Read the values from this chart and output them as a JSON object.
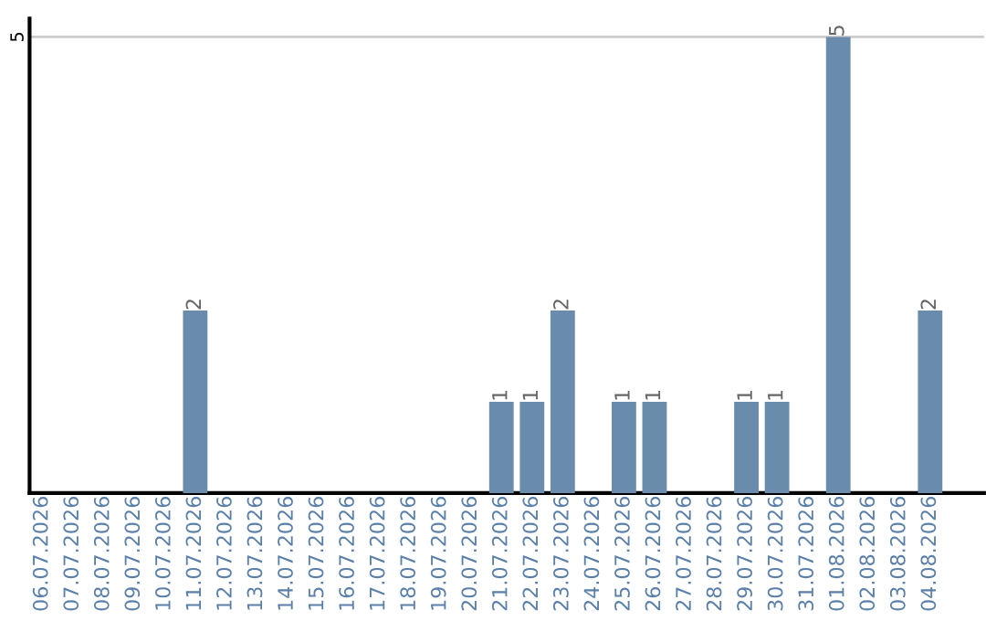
{
  "chart_data": {
    "type": "bar",
    "categories": [
      "06.07.2026",
      "07.07.2026",
      "08.07.2026",
      "09.07.2026",
      "10.07.2026",
      "11.07.2026",
      "12.07.2026",
      "13.07.2026",
      "14.07.2026",
      "15.07.2026",
      "16.07.2026",
      "17.07.2026",
      "18.07.2026",
      "19.07.2026",
      "20.07.2026",
      "21.07.2026",
      "22.07.2026",
      "23.07.2026",
      "24.07.2026",
      "25.07.2026",
      "26.07.2026",
      "27.07.2026",
      "28.07.2026",
      "29.07.2026",
      "30.07.2026",
      "31.07.2026",
      "01.08.2026",
      "02.08.2026",
      "03.08.2026",
      "04.08.2026"
    ],
    "values": [
      0,
      0,
      0,
      0,
      0,
      2,
      0,
      0,
      0,
      0,
      0,
      0,
      0,
      0,
      0,
      1,
      1,
      2,
      0,
      1,
      1,
      0,
      0,
      1,
      1,
      0,
      5,
      0,
      0,
      2
    ],
    "value_labels": [
      null,
      null,
      null,
      null,
      null,
      "2",
      null,
      null,
      null,
      null,
      null,
      null,
      null,
      null,
      null,
      "1",
      "1",
      "2",
      null,
      "1",
      "1",
      null,
      null,
      "1",
      "1",
      null,
      "5",
      null,
      null,
      "2"
    ],
    "color": "#6a8cac",
    "ylim": [
      0,
      5.2
    ],
    "yticks": [
      5
    ],
    "grid": "y"
  }
}
